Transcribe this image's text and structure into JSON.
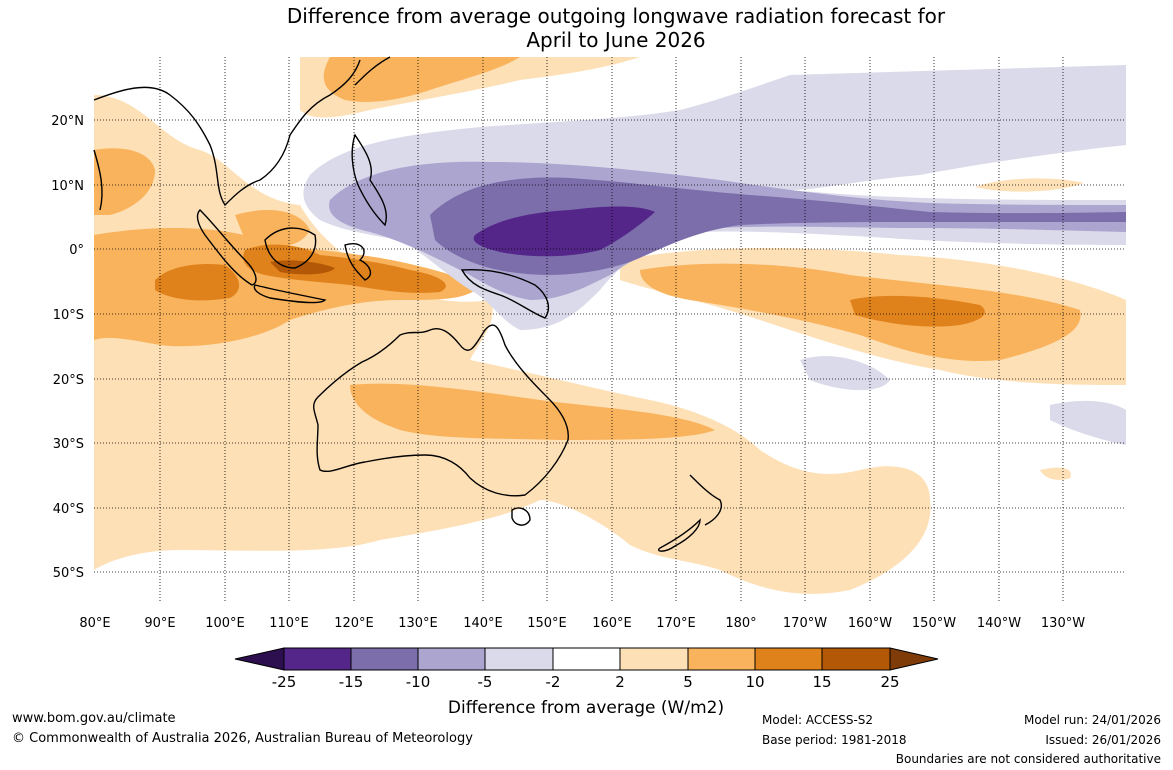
{
  "title": {
    "line1": "Difference from average outgoing longwave radiation forecast for",
    "line2": "April to June 2026"
  },
  "map": {
    "lon_labels": [
      "80°E",
      "90°E",
      "100°E",
      "110°E",
      "120°E",
      "130°E",
      "140°E",
      "150°E",
      "160°E",
      "170°E",
      "180°",
      "170°W",
      "160°W",
      "150°W",
      "140°W",
      "130°W"
    ],
    "lat_labels": [
      "20°N",
      "10°N",
      "0°",
      "10°S",
      "20°S",
      "30°S",
      "40°S",
      "50°S"
    ],
    "regions": [
      "Australia",
      "New Zealand",
      "Indonesia",
      "Papua New Guinea",
      "Philippines",
      "Southeast Asia",
      "Western Pacific"
    ]
  },
  "colorbar": {
    "tick_labels": [
      "-25",
      "-15",
      "-10",
      "-5",
      "-2",
      "2",
      "5",
      "10",
      "15",
      "25"
    ],
    "colors": [
      "#2d0e4f",
      "#54268a",
      "#7b6eaa",
      "#aba5cf",
      "#dadaea",
      "#ffffff",
      "#fde0b6",
      "#f9b35d",
      "#e0821c",
      "#b35806",
      "#7f3b08"
    ],
    "label": "Difference from average (W/m2)"
  },
  "footer": {
    "website": "www.bom.gov.au/climate",
    "copyright": "© Commonwealth of Australia 2026, Australian Bureau of Meteorology",
    "model": "Model: ACCESS-S2",
    "base_period": "Base period: 1981-2018",
    "model_run": "Model run: 24/01/2026",
    "issued": "Issued: 26/01/2026",
    "disclaimer": "Boundaries are not considered authoritative"
  }
}
